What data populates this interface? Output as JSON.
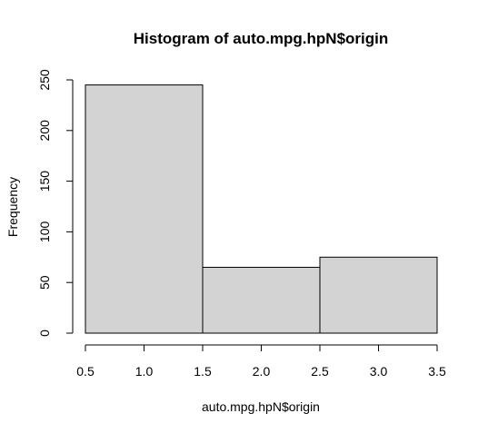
{
  "chart_data": {
    "type": "bar",
    "title": "Histogram of auto.mpg.hpN$origin",
    "xlabel": "auto.mpg.hpN$origin",
    "ylabel": "Frequency",
    "bins": [
      {
        "start": 0.5,
        "end": 1.5,
        "value": 245
      },
      {
        "start": 1.5,
        "end": 2.5,
        "value": 65
      },
      {
        "start": 2.5,
        "end": 3.5,
        "value": 75
      }
    ],
    "xlim": [
      0.5,
      3.5
    ],
    "ylim": [
      0,
      250
    ],
    "xticks": [
      "0.5",
      "1.0",
      "1.5",
      "2.0",
      "2.5",
      "3.0",
      "3.5"
    ],
    "yticks": [
      "0",
      "50",
      "100",
      "150",
      "200",
      "250"
    ],
    "bar_color": "#d3d3d3",
    "grid": false
  }
}
